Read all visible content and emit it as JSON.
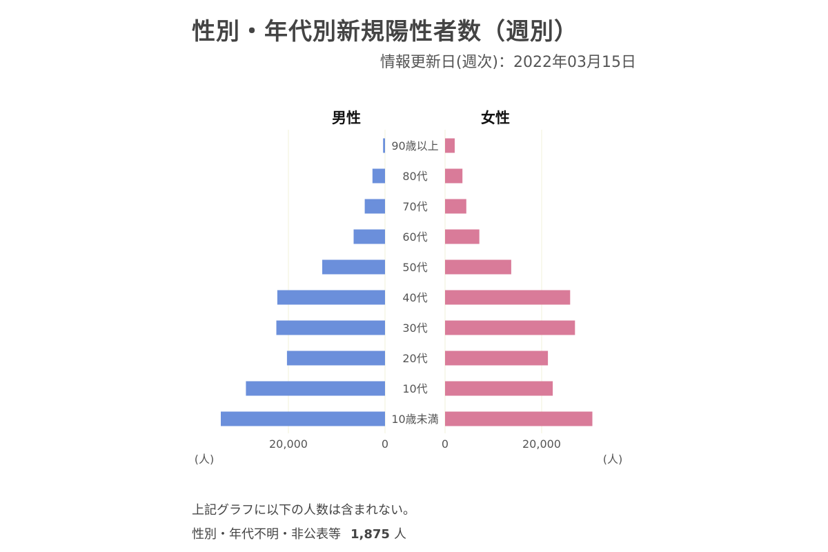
{
  "title": "性別・年代別新規陽性者数（週別）",
  "updated": "情報更新日(週次)：2022年03月15日",
  "chart_data": {
    "type": "bar",
    "orientation": "horizontal",
    "layout": "population-pyramid",
    "categories": [
      "90歳以上",
      "80代",
      "70代",
      "60代",
      "50代",
      "40代",
      "30代",
      "20代",
      "10代",
      "10歳未満"
    ],
    "series": [
      {
        "name": "男性",
        "color": "#6b8fdb",
        "values": [
          400,
          2600,
          4200,
          6500,
          13000,
          22300,
          22500,
          20300,
          28800,
          34000
        ]
      },
      {
        "name": "女性",
        "color": "#d97b99",
        "values": [
          2000,
          3600,
          4400,
          7100,
          13700,
          25900,
          26900,
          21300,
          22300,
          30500
        ]
      }
    ],
    "x_ticks": {
      "male": [
        "20,000",
        "0"
      ],
      "female": [
        "0",
        "20,000"
      ]
    },
    "unit_label": "(人)",
    "xlim": [
      0,
      40000
    ]
  },
  "notes": {
    "line1": "上記グラフに以下の人数は含まれない。",
    "line2_label": "性別・年代不明・非公表等",
    "line2_count": "1,875",
    "line2_unit": "人"
  }
}
